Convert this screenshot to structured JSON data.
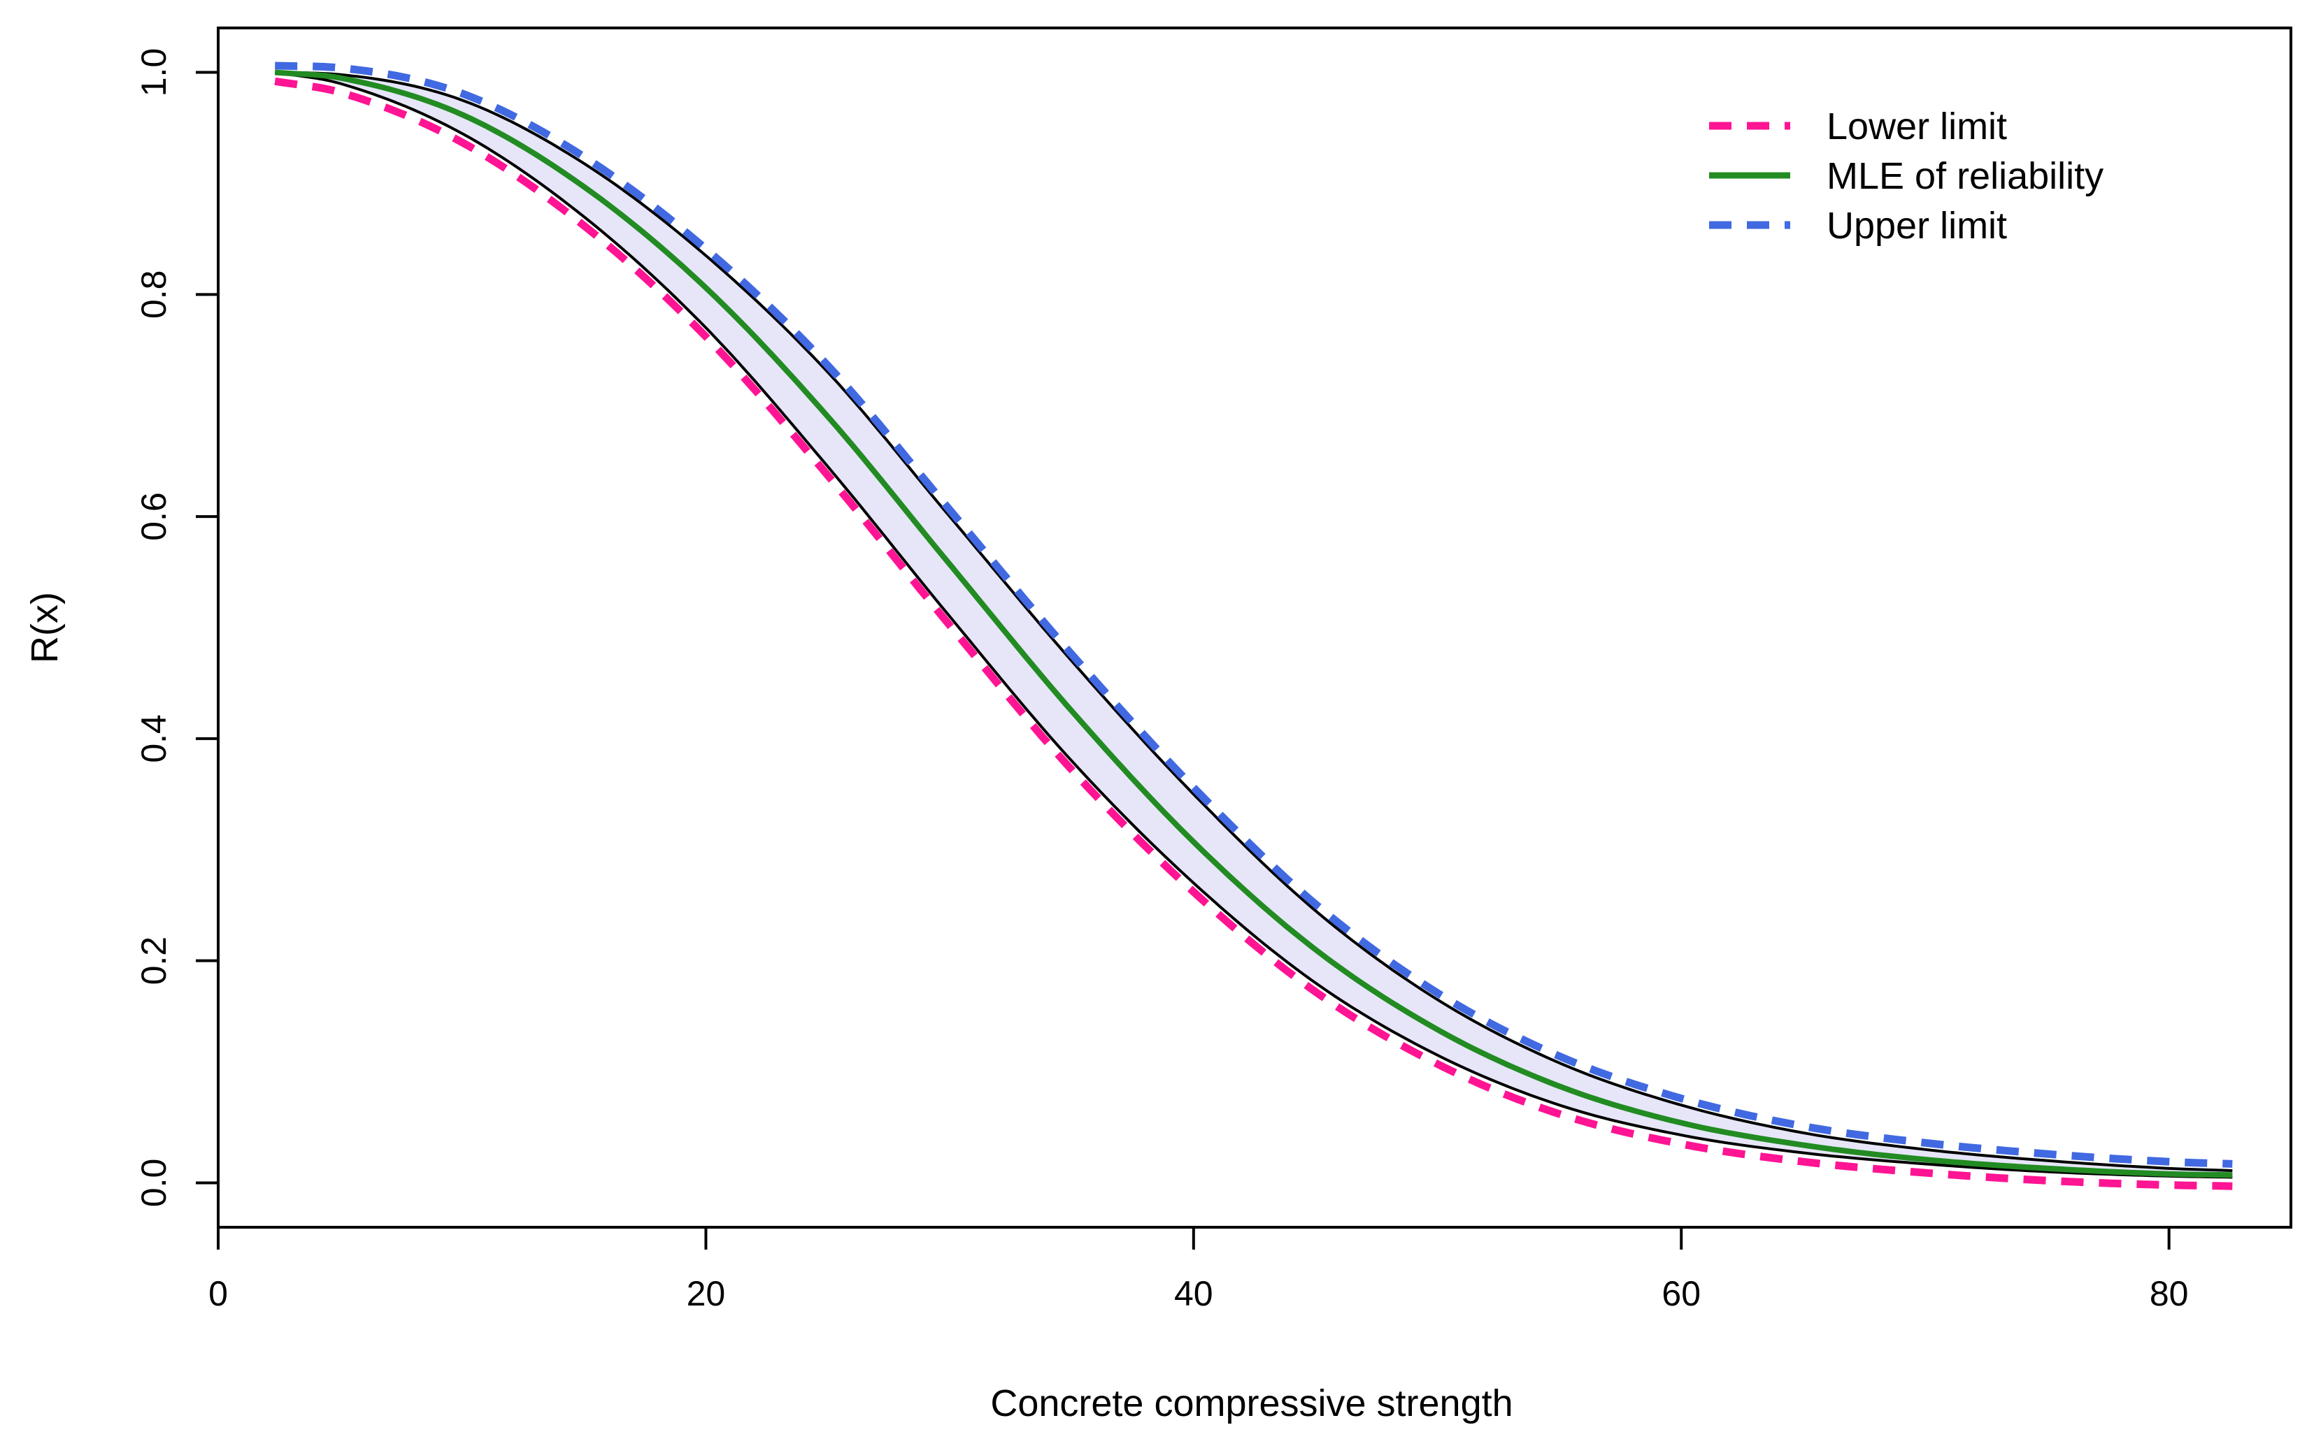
{
  "chart_data": {
    "type": "line",
    "title": "",
    "xlabel": "Concrete compressive strength",
    "ylabel": "R(x)",
    "xlim": [
      0,
      85
    ],
    "ylim": [
      -0.04,
      1.04
    ],
    "x_ticks": [
      0,
      20,
      40,
      60,
      80
    ],
    "x_tick_labels": [
      "0",
      "20",
      "40",
      "60",
      "80"
    ],
    "y_ticks": [
      0.0,
      0.2,
      0.4,
      0.6,
      0.8,
      1.0
    ],
    "y_tick_labels": [
      "0.0",
      "0.2",
      "0.4",
      "0.6",
      "0.8",
      "1.0"
    ],
    "grid": false,
    "legend_position": "top-right",
    "x": [
      2.33,
      5,
      10,
      15,
      20,
      25,
      30,
      35,
      40,
      45,
      50,
      55,
      60,
      65,
      70,
      75,
      80,
      82.6
    ],
    "band": {
      "fill": "#e6e6f8",
      "border": "#000000"
    },
    "series": [
      {
        "name": "Lower limit",
        "color": "#ff1493",
        "style": "dashed",
        "values": [
          1.0,
          0.99,
          0.945,
          0.87,
          0.77,
          0.645,
          0.51,
          0.38,
          0.27,
          0.18,
          0.115,
          0.07,
          0.043,
          0.027,
          0.017,
          0.01,
          0.006,
          0.005
        ]
      },
      {
        "name": "MLE of reliability",
        "color": "#228b22",
        "style": "solid",
        "values": [
          1.0,
          0.995,
          0.962,
          0.897,
          0.806,
          0.69,
          0.557,
          0.425,
          0.307,
          0.21,
          0.138,
          0.087,
          0.054,
          0.034,
          0.021,
          0.013,
          0.008,
          0.007
        ]
      },
      {
        "name": "Upper limit",
        "color": "#4169e1",
        "style": "dashed",
        "values": [
          1.0,
          0.998,
          0.975,
          0.918,
          0.835,
          0.73,
          0.6,
          0.47,
          0.35,
          0.245,
          0.165,
          0.108,
          0.07,
          0.045,
          0.03,
          0.02,
          0.013,
          0.011
        ]
      }
    ]
  }
}
